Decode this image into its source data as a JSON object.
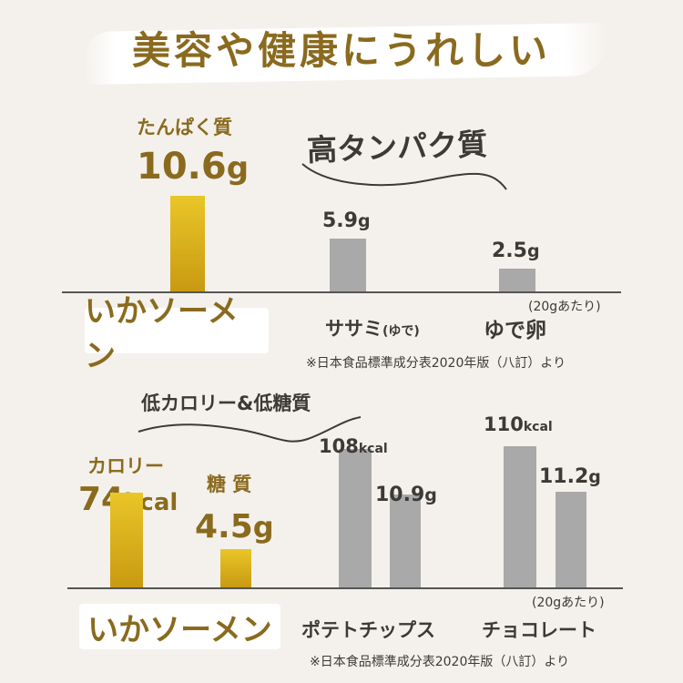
{
  "title": "美容や健康にうれしい",
  "section1": {
    "badge": "高タンパク質",
    "metric_label": "たんぱく質",
    "main_product": "いかソーメン",
    "per": "(20gあたり)",
    "source": "※日本食品標準成分表2020年版（八訂）より"
  },
  "section2": {
    "badge": "低カロリー&低糖質",
    "calorie_label": "カロリー",
    "sugar_label": "糖 質",
    "main_product": "いかソーメン",
    "per": "(20gあたり)",
    "source": "※日本食品標準成分表2020年版（八訂）より"
  },
  "colors": {
    "gold": "#8a6a1e",
    "bar_gold": "#d9b01c",
    "bar_gray": "#a9a9a9"
  },
  "chart_data": [
    {
      "type": "bar",
      "categories": [
        "いかソーメン",
        "ササミ(ゆで)",
        "ゆで卵"
      ],
      "category_display": [
        {
          "main": "いかソーメン",
          "sub": ""
        },
        {
          "main": "ササミ",
          "sub": "(ゆで)"
        },
        {
          "main": "ゆで卵",
          "sub": ""
        }
      ],
      "series": [
        {
          "name": "たんぱく質",
          "values": [
            10.6,
            5.9,
            2.5
          ]
        }
      ],
      "value_labels": [
        {
          "num": "10.6",
          "unit": "g"
        },
        {
          "num": "5.9",
          "unit": "g"
        },
        {
          "num": "2.5",
          "unit": "g"
        }
      ],
      "ylim": [
        0,
        10.6
      ]
    },
    {
      "type": "bar",
      "categories": [
        "いかソーメン",
        "ポテトチップス",
        "チョコレート"
      ],
      "series": [
        {
          "name": "カロリー",
          "values": [
            74,
            108,
            110
          ]
        },
        {
          "name": "糖 質",
          "values": [
            4.5,
            10.9,
            11.2
          ]
        }
      ],
      "calorie_labels": [
        {
          "num": "74",
          "unit": "kcal"
        },
        {
          "num": "108",
          "unit": "kcal"
        },
        {
          "num": "110",
          "unit": "kcal"
        }
      ],
      "sugar_labels": [
        {
          "num": "4.5",
          "unit": "g"
        },
        {
          "num": "10.9",
          "unit": "g"
        },
        {
          "num": "11.2",
          "unit": "g"
        }
      ]
    }
  ]
}
